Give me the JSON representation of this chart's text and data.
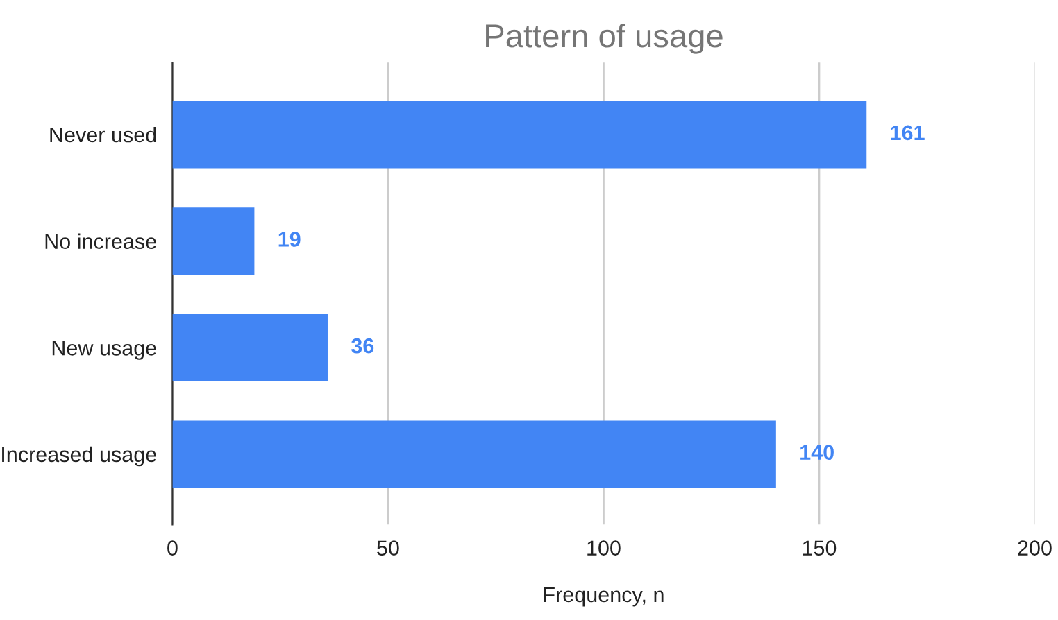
{
  "chart_data": {
    "type": "bar",
    "orientation": "horizontal",
    "title": "Pattern of usage",
    "xlabel": "Frequency, n",
    "categories": [
      "Never used",
      "No increase",
      "New usage",
      "Increased usage"
    ],
    "values": [
      161,
      19,
      36,
      140
    ],
    "color": "#4285f4",
    "data_labels": true,
    "xlim": [
      0,
      200
    ],
    "xticks": [
      0,
      50,
      100,
      150,
      200
    ],
    "grid": "x",
    "legend": false
  }
}
